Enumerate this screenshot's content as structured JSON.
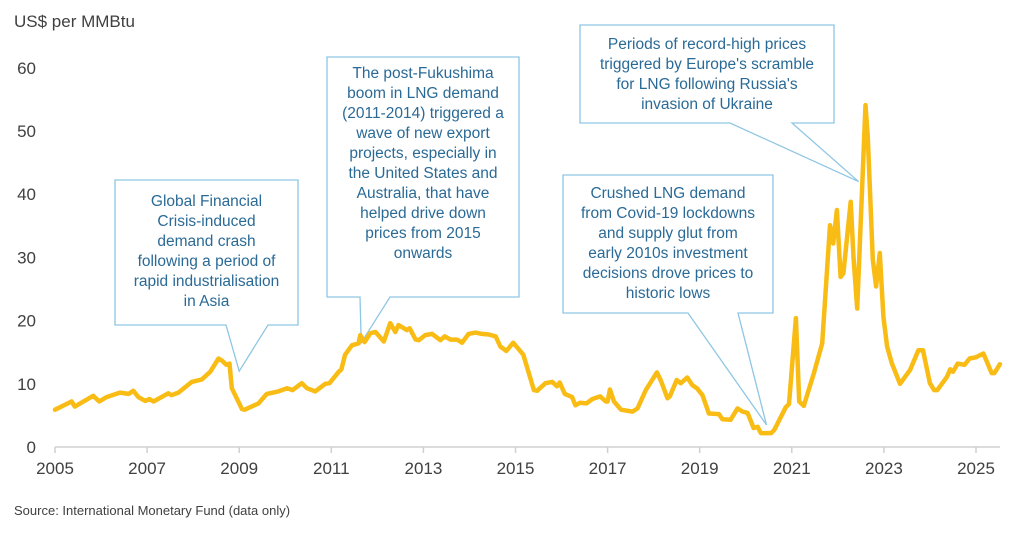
{
  "chart_data": {
    "type": "line",
    "ylabel": "US$ per MMBtu",
    "ylim": [
      0,
      60
    ],
    "yticks": [
      0,
      10,
      20,
      30,
      40,
      50,
      60
    ],
    "xlim": [
      2005,
      2025.6
    ],
    "xticks": [
      "2005",
      "2007",
      "2009",
      "2011",
      "2013",
      "2015",
      "2017",
      "2019",
      "2021",
      "2023",
      "2025"
    ],
    "grid": false,
    "line_color": "#f9bc15",
    "points": [
      [
        2005.0,
        5.9
      ],
      [
        2005.36,
        7.2
      ],
      [
        2005.43,
        6.4
      ],
      [
        2005.83,
        8.1
      ],
      [
        2005.96,
        7.2
      ],
      [
        2006.12,
        7.9
      ],
      [
        2006.41,
        8.6
      ],
      [
        2006.6,
        8.4
      ],
      [
        2006.7,
        8.9
      ],
      [
        2006.81,
        7.9
      ],
      [
        2006.96,
        7.3
      ],
      [
        2007.05,
        7.6
      ],
      [
        2007.14,
        7.2
      ],
      [
        2007.46,
        8.5
      ],
      [
        2007.53,
        8.2
      ],
      [
        2007.68,
        8.6
      ],
      [
        2007.97,
        10.3
      ],
      [
        2008.19,
        10.7
      ],
      [
        2008.37,
        11.9
      ],
      [
        2008.55,
        14.0
      ],
      [
        2008.62,
        13.7
      ],
      [
        2008.72,
        13.0
      ],
      [
        2008.79,
        13.2
      ],
      [
        2008.84,
        9.3
      ],
      [
        2009.06,
        6.0
      ],
      [
        2009.12,
        5.9
      ],
      [
        2009.42,
        6.9
      ],
      [
        2009.6,
        8.4
      ],
      [
        2009.85,
        8.8
      ],
      [
        2010.04,
        9.3
      ],
      [
        2010.16,
        9.0
      ],
      [
        2010.36,
        10.1
      ],
      [
        2010.47,
        9.3
      ],
      [
        2010.65,
        8.8
      ],
      [
        2010.87,
        10.0
      ],
      [
        2010.96,
        10.1
      ],
      [
        2011.16,
        11.9
      ],
      [
        2011.22,
        12.3
      ],
      [
        2011.3,
        14.6
      ],
      [
        2011.45,
        16.1
      ],
      [
        2011.59,
        16.4
      ],
      [
        2011.63,
        17.7
      ],
      [
        2011.72,
        16.6
      ],
      [
        2011.85,
        18.0
      ],
      [
        2011.96,
        18.2
      ],
      [
        2012.14,
        16.7
      ],
      [
        2012.28,
        19.6
      ],
      [
        2012.39,
        18.2
      ],
      [
        2012.46,
        19.3
      ],
      [
        2012.64,
        18.5
      ],
      [
        2012.7,
        18.8
      ],
      [
        2012.83,
        17.0
      ],
      [
        2012.9,
        16.9
      ],
      [
        2013.04,
        17.7
      ],
      [
        2013.19,
        17.9
      ],
      [
        2013.37,
        16.9
      ],
      [
        2013.46,
        17.5
      ],
      [
        2013.59,
        17.0
      ],
      [
        2013.73,
        17.0
      ],
      [
        2013.84,
        16.5
      ],
      [
        2013.98,
        17.9
      ],
      [
        2014.13,
        18.1
      ],
      [
        2014.27,
        17.9
      ],
      [
        2014.42,
        17.8
      ],
      [
        2014.57,
        17.5
      ],
      [
        2014.67,
        15.9
      ],
      [
        2014.8,
        15.2
      ],
      [
        2014.95,
        16.5
      ],
      [
        2015.17,
        14.6
      ],
      [
        2015.4,
        9.0
      ],
      [
        2015.47,
        8.9
      ],
      [
        2015.65,
        10.1
      ],
      [
        2015.8,
        10.3
      ],
      [
        2015.9,
        9.6
      ],
      [
        2015.96,
        10.2
      ],
      [
        2016.07,
        8.4
      ],
      [
        2016.23,
        7.9
      ],
      [
        2016.3,
        6.6
      ],
      [
        2016.4,
        7.0
      ],
      [
        2016.54,
        6.9
      ],
      [
        2016.67,
        7.6
      ],
      [
        2016.84,
        8.0
      ],
      [
        2016.96,
        7.2
      ],
      [
        2017.0,
        7.2
      ],
      [
        2017.05,
        9.1
      ],
      [
        2017.14,
        7.2
      ],
      [
        2017.29,
        5.9
      ],
      [
        2017.54,
        5.6
      ],
      [
        2017.65,
        6.1
      ],
      [
        2017.83,
        9.0
      ],
      [
        2018.07,
        11.8
      ],
      [
        2018.15,
        10.6
      ],
      [
        2018.3,
        7.7
      ],
      [
        2018.35,
        8.0
      ],
      [
        2018.5,
        10.6
      ],
      [
        2018.59,
        10.1
      ],
      [
        2018.73,
        11.0
      ],
      [
        2018.84,
        9.8
      ],
      [
        2018.94,
        9.3
      ],
      [
        2019.06,
        8.2
      ],
      [
        2019.2,
        5.3
      ],
      [
        2019.42,
        5.2
      ],
      [
        2019.49,
        4.4
      ],
      [
        2019.67,
        4.3
      ],
      [
        2019.82,
        6.1
      ],
      [
        2019.93,
        5.6
      ],
      [
        2020.04,
        5.4
      ],
      [
        2020.17,
        3.0
      ],
      [
        2020.26,
        3.2
      ],
      [
        2020.33,
        2.2
      ],
      [
        2020.55,
        2.2
      ],
      [
        2020.62,
        2.7
      ],
      [
        2020.87,
        6.3
      ],
      [
        2020.94,
        6.8
      ],
      [
        2021.09,
        20.4
      ],
      [
        2021.16,
        7.2
      ],
      [
        2021.26,
        6.5
      ],
      [
        2021.48,
        11.7
      ],
      [
        2021.66,
        16.4
      ],
      [
        2021.83,
        35.1
      ],
      [
        2021.9,
        32.2
      ],
      [
        2021.98,
        37.5
      ],
      [
        2022.06,
        26.9
      ],
      [
        2022.12,
        27.5
      ],
      [
        2022.28,
        38.8
      ],
      [
        2022.34,
        30.0
      ],
      [
        2022.42,
        21.9
      ],
      [
        2022.6,
        54.1
      ],
      [
        2022.65,
        49.0
      ],
      [
        2022.76,
        29.6
      ],
      [
        2022.83,
        25.4
      ],
      [
        2022.91,
        30.7
      ],
      [
        2022.99,
        20.6
      ],
      [
        2023.07,
        15.9
      ],
      [
        2023.17,
        13.3
      ],
      [
        2023.35,
        10.0
      ],
      [
        2023.57,
        12.2
      ],
      [
        2023.75,
        15.3
      ],
      [
        2023.85,
        15.3
      ],
      [
        2024.0,
        10.1
      ],
      [
        2024.09,
        9.0
      ],
      [
        2024.16,
        9.0
      ],
      [
        2024.37,
        11.1
      ],
      [
        2024.44,
        12.3
      ],
      [
        2024.5,
        11.9
      ],
      [
        2024.6,
        13.2
      ],
      [
        2024.75,
        13.0
      ],
      [
        2024.86,
        14.0
      ],
      [
        2025.0,
        14.2
      ],
      [
        2025.16,
        14.8
      ],
      [
        2025.34,
        11.7
      ],
      [
        2025.4,
        11.7
      ],
      [
        2025.52,
        13.1
      ]
    ],
    "annotations": [
      {
        "text": [
          "Global Financial",
          "Crisis-induced",
          "demand crash",
          "following a period of",
          "rapid industrialisation",
          "in Asia"
        ],
        "points_to": [
          2009.0,
          12.0
        ]
      },
      {
        "text": [
          "The post-Fukushima",
          "boom in LNG demand",
          "(2011-2014) triggered a",
          "wave of new export",
          "projects, especially in",
          "the United States and",
          "Australia, that have",
          "helped drive down",
          "prices from 2015",
          "onwards"
        ],
        "points_to": [
          2011.65,
          16.5
        ]
      },
      {
        "text": [
          "Crushed LNG demand",
          "from Covid-19 lockdowns",
          "and supply glut from",
          "early 2010s investment",
          "decisions drove prices to",
          "historic lows"
        ],
        "points_to": [
          2020.45,
          3.5
        ]
      },
      {
        "text": [
          "Periods of record-high prices",
          "triggered by Europe's scramble",
          "for LNG following Russia's",
          "invasion of Ukraine"
        ],
        "points_to": [
          2022.45,
          42.0
        ]
      }
    ],
    "source": "Source: International Monetary Fund (data only)"
  }
}
